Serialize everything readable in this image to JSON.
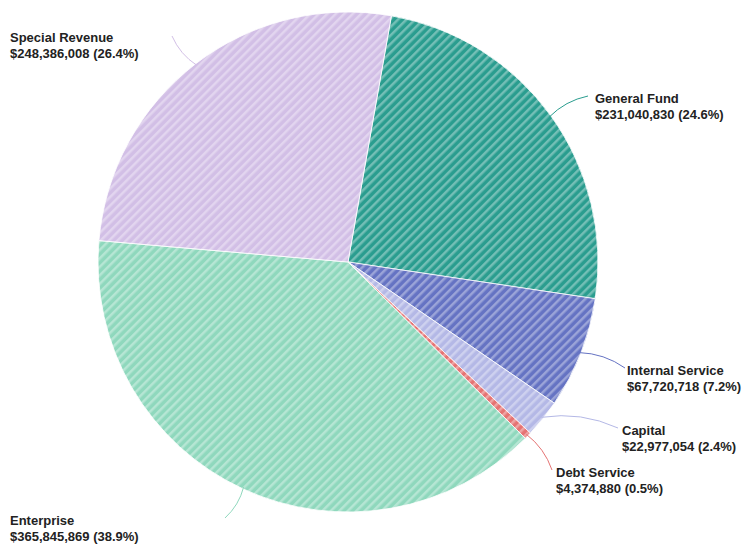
{
  "chart_data": {
    "type": "pie",
    "categories": [
      "General Fund",
      "Internal Service",
      "Capital",
      "Debt Service",
      "Enterprise",
      "Special Revenue"
    ],
    "values": [
      231040830,
      67720718,
      22977054,
      4374880,
      365845869,
      248386008
    ],
    "value_labels": [
      "$231,040,830 (24.6%)",
      "$67,720,718 (7.2%)",
      "$22,977,054 (2.4%)",
      "$4,374,880 (0.5%)",
      "$365,845,869 (38.9%)",
      "$248,386,008 (26.4%)"
    ],
    "colors": [
      "#2a9d8f",
      "#6573c3",
      "#b4b8e6",
      "#e57373",
      "#8fd8bd",
      "#d2bfe6"
    ],
    "data_labels": true
  }
}
